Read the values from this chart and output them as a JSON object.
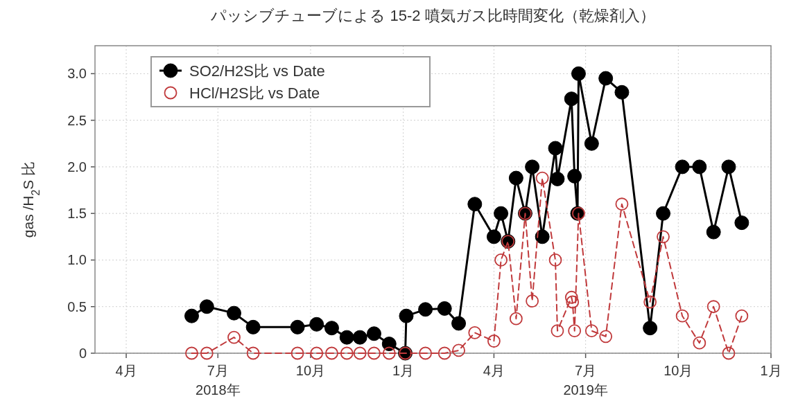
{
  "chart_data": {
    "type": "line",
    "title": "パッシブチューブによる 15-2 噴気ガス比時間変化（乾燥剤入）",
    "ylabel": "gas /H$_{2}$S 比",
    "xlim": [
      "2018-03-01",
      "2020-01-01"
    ],
    "ylim": [
      0,
      3.3
    ],
    "xticks": [
      {
        "value": "2018-04-01",
        "label": "4月"
      },
      {
        "value": "2018-07-01",
        "label": "7月\n2018年"
      },
      {
        "value": "2018-10-01",
        "label": "10月"
      },
      {
        "value": "2019-01-01",
        "label": "1月"
      },
      {
        "value": "2019-04-01",
        "label": "4月"
      },
      {
        "value": "2019-07-01",
        "label": "7月\n2019年"
      },
      {
        "value": "2019-10-01",
        "label": "10月"
      },
      {
        "value": "2020-01-01",
        "label": "1月"
      }
    ],
    "yticks": [
      0,
      0.5,
      {
        "value": 1,
        "label": "1.0"
      },
      1.5,
      {
        "value": 2,
        "label": "2.0"
      },
      2.5,
      {
        "value": 3,
        "label": "3.0"
      }
    ],
    "grid": true,
    "legend": "top left",
    "series": [
      {
        "name": "SO2/H2S比 vs Date",
        "color": "#000000",
        "line_style": "solid",
        "marker": "circle",
        "x": [
          "2018-06-05",
          "2018-06-20",
          "2018-07-17",
          "2018-08-05",
          "2018-09-18",
          "2018-10-07",
          "2018-10-22",
          "2018-11-06",
          "2018-11-19",
          "2018-12-03",
          "2018-12-18",
          "2019-01-03",
          "2019-01-04",
          "2019-01-23",
          "2019-02-11",
          "2019-02-25",
          "2019-03-13",
          "2019-04-01",
          "2019-04-08",
          "2019-04-15",
          "2019-04-23",
          "2019-05-02",
          "2019-05-09",
          "2019-05-19",
          "2019-06-01",
          "2019-06-03",
          "2019-06-17",
          "2019-06-20",
          "2019-06-23",
          "2019-06-24",
          "2019-07-07",
          "2019-07-21",
          "2019-08-06",
          "2019-09-03",
          "2019-09-16",
          "2019-10-05",
          "2019-10-22",
          "2019-11-05",
          "2019-11-20",
          "2019-12-03"
        ],
        "values": [
          0.4,
          0.5,
          0.43,
          0.28,
          0.28,
          0.31,
          0.27,
          0.17,
          0.17,
          0.21,
          0.1,
          0,
          0.4,
          0.47,
          0.48,
          0.32,
          1.6,
          1.25,
          1.5,
          1.2,
          1.88,
          1.5,
          2.0,
          1.25,
          2.2,
          1.87,
          2.73,
          1.9,
          1.5,
          3.0,
          2.25,
          2.95,
          2.8,
          0.27,
          1.5,
          2.0,
          2.0,
          1.3,
          2.0,
          1.4
        ]
      },
      {
        "name": "HCl/H2S比 vs Date",
        "color": "#c0393b",
        "line_style": "dashed",
        "marker": "circle",
        "x": [
          "2018-06-05",
          "2018-06-20",
          "2018-07-17",
          "2018-08-05",
          "2018-09-18",
          "2018-10-07",
          "2018-10-22",
          "2018-11-06",
          "2018-11-19",
          "2018-12-03",
          "2018-12-18",
          "2019-01-03",
          "2019-01-23",
          "2019-02-11",
          "2019-02-25",
          "2019-03-13",
          "2019-04-01",
          "2019-04-08",
          "2019-04-15",
          "2019-04-23",
          "2019-05-02",
          "2019-05-09",
          "2019-05-19",
          "2019-06-01",
          "2019-06-03",
          "2019-06-17",
          "2019-06-18",
          "2019-06-20",
          "2019-06-24",
          "2019-07-07",
          "2019-07-21",
          "2019-08-06",
          "2019-09-03",
          "2019-09-16",
          "2019-10-05",
          "2019-10-22",
          "2019-11-05",
          "2019-11-20",
          "2019-12-03"
        ],
        "values": [
          0,
          0,
          0.17,
          0,
          0,
          0,
          0,
          0,
          0,
          0,
          0,
          0,
          0,
          0,
          0.03,
          0.22,
          0.13,
          1.0,
          1.2,
          0.37,
          1.5,
          0.56,
          1.88,
          1.0,
          0.24,
          0.6,
          0.55,
          0.24,
          1.5,
          0.24,
          0.18,
          1.6,
          0.55,
          1.25,
          0.4,
          0.11,
          0.5,
          0,
          0.4
        ]
      }
    ]
  }
}
